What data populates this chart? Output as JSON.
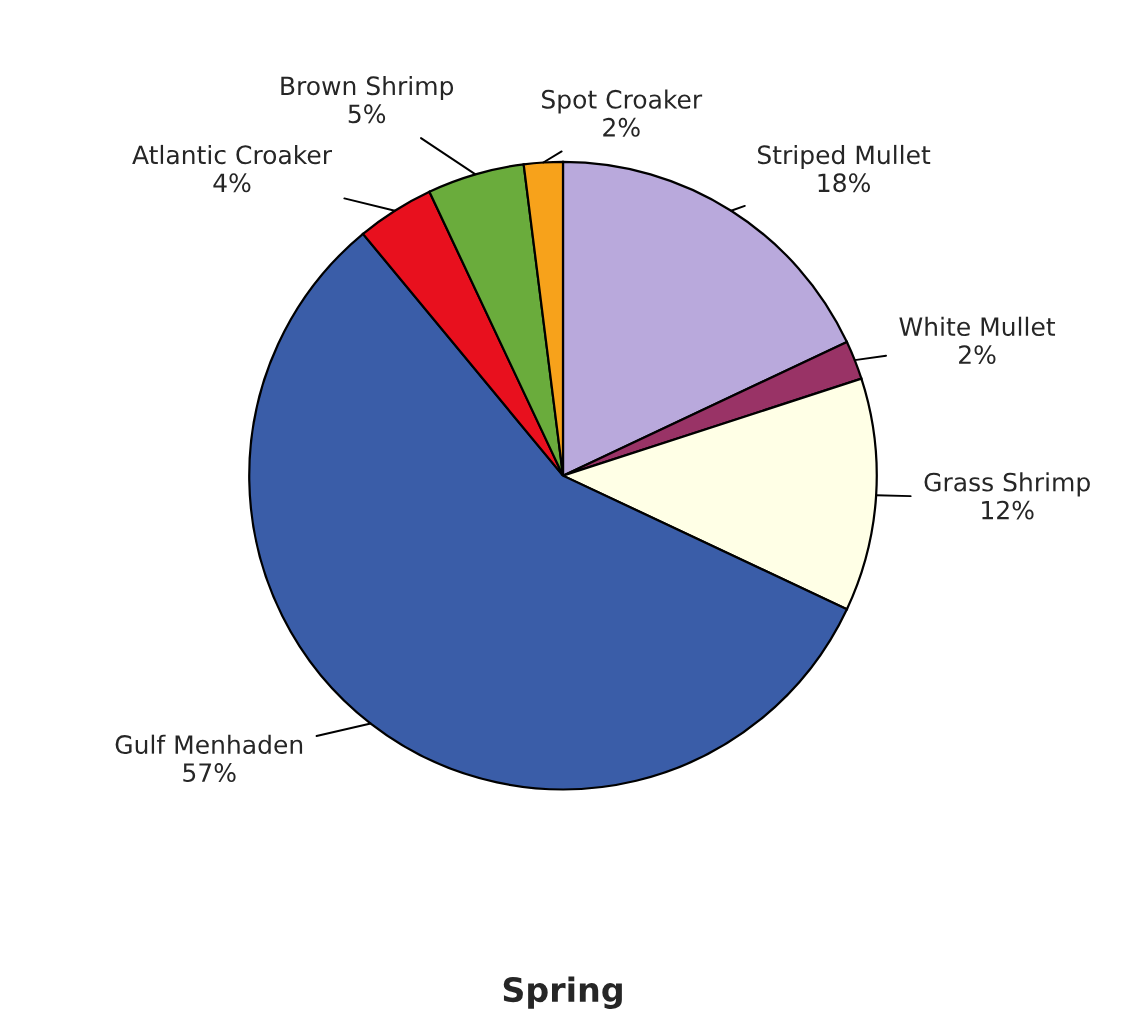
{
  "chart_data": {
    "type": "pie",
    "title": "Spring",
    "categories": [
      "Striped Mullet",
      "White Mullet",
      "Grass Shrimp",
      "Gulf Menhaden",
      "Atlantic Croaker",
      "Brown Shrimp",
      "Spot Croaker"
    ],
    "values": [
      18,
      2,
      12,
      57,
      4,
      5,
      2
    ],
    "value_labels": [
      "18%",
      "2%",
      "12%",
      "57%",
      "4%",
      "5%",
      "2%"
    ],
    "colors": [
      "#b9a9dc",
      "#993366",
      "#ffffe6",
      "#3a5da8",
      "#e8101e",
      "#6aac3c",
      "#f7a21b"
    ],
    "legend": false
  }
}
